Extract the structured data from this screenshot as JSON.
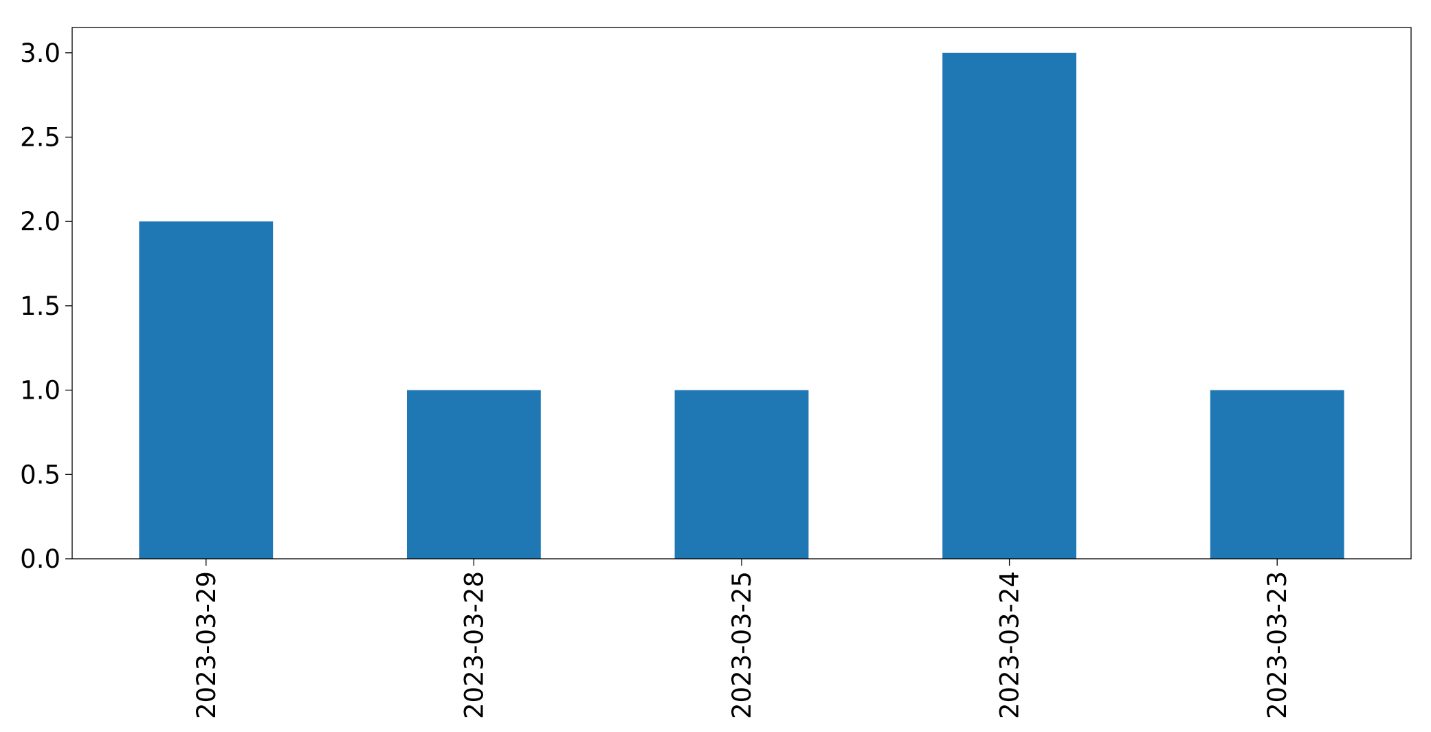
{
  "chart_data": {
    "type": "bar",
    "title": "",
    "xlabel": "",
    "ylabel": "",
    "categories": [
      "2023-03-29",
      "2023-03-28",
      "2023-03-25",
      "2023-03-24",
      "2023-03-23"
    ],
    "values": [
      2,
      1,
      1,
      3,
      1
    ],
    "ylim": [
      0,
      3.15
    ],
    "yticks": [
      0.0,
      0.5,
      1.0,
      1.5,
      2.0,
      2.5,
      3.0
    ],
    "ytick_labels": [
      "0.0",
      "0.5",
      "1.0",
      "1.5",
      "2.0",
      "2.5",
      "3.0"
    ],
    "grid": false,
    "legend": "none",
    "bar_color": "#1f77b4",
    "xtick_rotation": 90
  }
}
